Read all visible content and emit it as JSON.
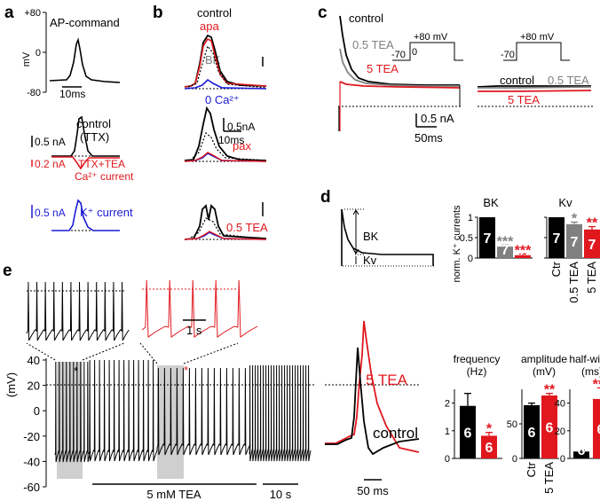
{
  "panel_labels": {
    "a": "a",
    "b": "b",
    "c": "c",
    "d": "d",
    "e": "e"
  },
  "colors": {
    "black": "#000000",
    "red": "#e0181e",
    "gray": "#808080",
    "blue": "#1a1ad6"
  },
  "panel_a": {
    "title": "AP-command",
    "y_ticks": [
      "+80",
      "0",
      "-80"
    ],
    "y_unit": "mV",
    "time_scale": "10ms",
    "control_label": "control",
    "ttx_label": "(TTX)",
    "scale_black": "0.5 nA",
    "scale_red": "0.2 nA",
    "ttx_tea_label": "TTX+TEA",
    "ca_label": "Ca²⁺ current",
    "scale_blue": "0.5 nA",
    "k_label": "K⁺ current"
  },
  "panel_b": {
    "control": "control",
    "apa": "apa",
    "bk": "BK",
    "ca0": "0 Ca²⁺",
    "scale_current": "0.5nA",
    "scale_time": "10ms",
    "pax": "pax",
    "tea": "0.5 TEA"
  },
  "panel_c": {
    "control": "control",
    "tea05": "0.5 TEA",
    "tea5": "5 TEA",
    "protocol_step": "+80 mV",
    "protocol_hold": "-70",
    "protocol_zero": "0",
    "control2": "control",
    "tea05_2": "0.5 TEA",
    "tea5_2": "5 TEA",
    "scale_current": "0.5 nA",
    "scale_time": "50ms"
  },
  "panel_d": {
    "bk_label": "BK",
    "kv_label": "Kv",
    "chart_title_bk": "BK",
    "chart_title_kv": "Kv",
    "y_axis": "norm. K⁺ currents",
    "y_ticks": [
      "1",
      "0.5",
      "0"
    ],
    "x_labels": [
      "Ctr",
      "0.5 TEA",
      "5 TEA"
    ]
  },
  "panel_e": {
    "y_axis": "(mV)",
    "y_ticks": [
      "40",
      "20",
      "0",
      "-20",
      "-40",
      "-60"
    ],
    "tea_bar": "5 mM TEA",
    "time_scale": "10 s",
    "inset_scale": "1 s",
    "star": "*",
    "tea_label": "5 TEA",
    "control_label": "control",
    "ap_time_scale": "50 ms"
  },
  "chart_data": [
    {
      "type": "bar",
      "title": "BK",
      "ylabel": "norm. K⁺ currents",
      "ylim": [
        0,
        1
      ],
      "categories": [
        "Ctr",
        "0.5 TEA",
        "5 TEA"
      ],
      "values": [
        1.0,
        0.28,
        0.07
      ],
      "errors": [
        0,
        0.04,
        0.03
      ],
      "n": [
        "7",
        "7",
        "7"
      ],
      "significance": [
        "",
        "***",
        "***"
      ],
      "colors": [
        "#000000",
        "#808080",
        "#e0181e"
      ]
    },
    {
      "type": "bar",
      "title": "Kv",
      "ylim": [
        0,
        1
      ],
      "categories": [
        "Ctr",
        "0.5 TEA",
        "5 TEA"
      ],
      "values": [
        1.0,
        0.83,
        0.7
      ],
      "errors": [
        0,
        0.05,
        0.07
      ],
      "n": [
        "7",
        "7",
        "7"
      ],
      "significance": [
        "",
        "*",
        "**"
      ],
      "colors": [
        "#000000",
        "#808080",
        "#e0181e"
      ]
    },
    {
      "type": "bar",
      "title": "frequency",
      "ylabel": "(Hz)",
      "ylim": [
        0,
        2.5
      ],
      "y_ticks": [
        "0",
        "1",
        "2"
      ],
      "categories": [
        "Ctr",
        "5 TEA"
      ],
      "values": [
        1.9,
        0.82
      ],
      "errors": [
        0.45,
        0.12
      ],
      "n": [
        "6",
        "6"
      ],
      "significance": [
        "",
        "*"
      ],
      "colors": [
        "#000000",
        "#e0181e"
      ]
    },
    {
      "type": "bar",
      "title": "amplitude",
      "ylabel": "(mV)",
      "ylim": [
        0,
        100
      ],
      "y_ticks": [
        "0",
        "50"
      ],
      "categories": [
        "Ctr",
        "5 TEA"
      ],
      "values": [
        77,
        91
      ],
      "errors": [
        3,
        3
      ],
      "n": [
        "6",
        "6"
      ],
      "significance": [
        "",
        "**"
      ],
      "colors": [
        "#000000",
        "#e0181e"
      ]
    },
    {
      "type": "bar",
      "title": "half-width",
      "ylabel": "(ms)",
      "ylim": [
        0,
        50
      ],
      "y_ticks": [
        "0",
        "20",
        "40"
      ],
      "categories": [
        "Ctr",
        "5 TEA"
      ],
      "values": [
        5,
        43
      ],
      "errors": [
        1,
        8
      ],
      "n": [
        "6",
        "6"
      ],
      "significance": [
        "",
        "***"
      ],
      "colors": [
        "#000000",
        "#e0181e"
      ]
    }
  ]
}
